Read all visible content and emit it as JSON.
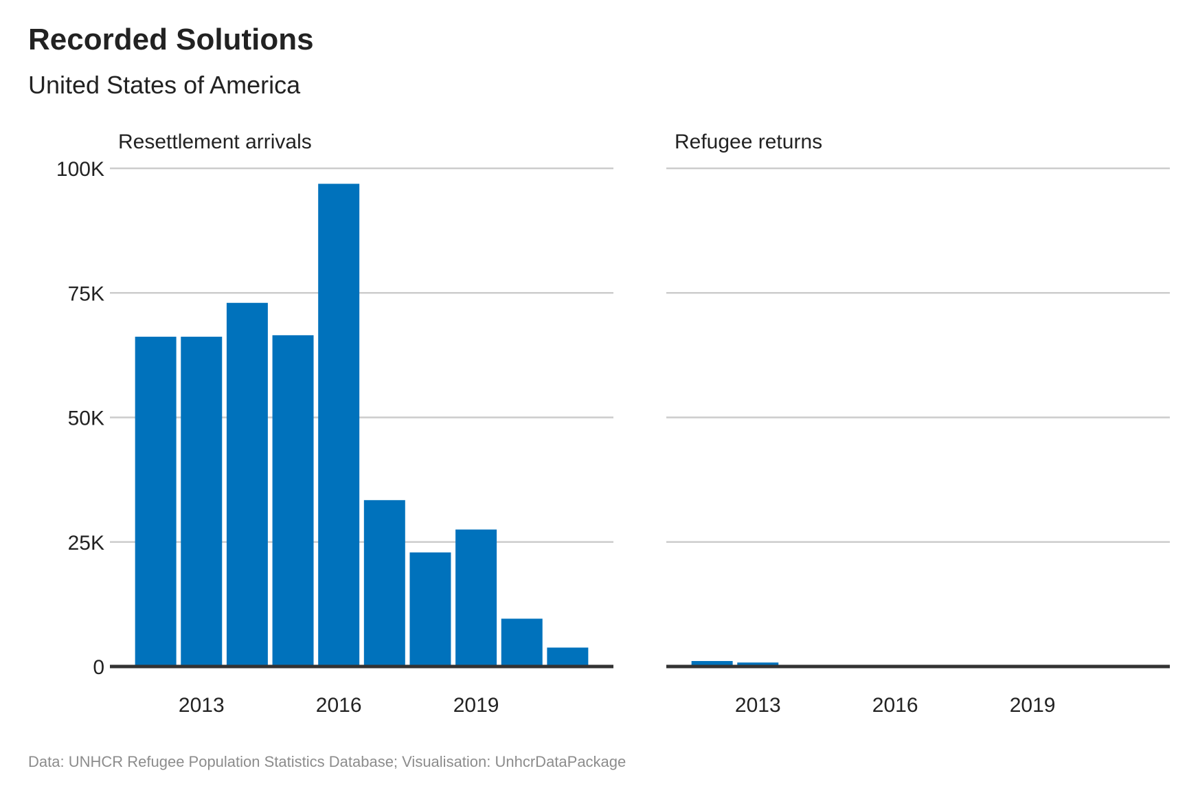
{
  "title": "Recorded Solutions",
  "subtitle": "United States of America",
  "caption": "Data: UNHCR Refugee Population Statistics Database; Visualisation: UnhcrDataPackage",
  "colors": {
    "bar": "#0072BC",
    "grid": "#CCCCCC",
    "baseline": "#333333",
    "text": "#222222",
    "caption": "#8C8C8C"
  },
  "chart_data": [
    {
      "type": "bar",
      "title": "Resettlement arrivals",
      "categories": [
        "2012",
        "2013",
        "2014",
        "2015",
        "2016",
        "2017",
        "2018",
        "2019",
        "2020",
        "2021"
      ],
      "values": [
        66200,
        66200,
        73000,
        66500,
        96900,
        33400,
        22900,
        27500,
        9600,
        3800
      ],
      "ylim": [
        0,
        100000
      ],
      "yticks": [
        0,
        25000,
        50000,
        75000,
        100000
      ],
      "ytick_labels": [
        "0",
        "25K",
        "50K",
        "75K",
        "100K"
      ],
      "xtick_labels": [
        "2013",
        "2016",
        "2019"
      ],
      "grid": true
    },
    {
      "type": "bar",
      "title": "Refugee returns",
      "categories": [
        "2012",
        "2013",
        "2014",
        "2015",
        "2016",
        "2017",
        "2018",
        "2019",
        "2020",
        "2021"
      ],
      "values": [
        1100,
        800,
        100,
        100,
        100,
        100,
        100,
        100,
        100,
        100
      ],
      "ylim": [
        0,
        100000
      ],
      "yticks": [
        0,
        25000,
        50000,
        75000,
        100000
      ],
      "xtick_labels": [
        "2013",
        "2016",
        "2019"
      ],
      "grid": true
    }
  ]
}
